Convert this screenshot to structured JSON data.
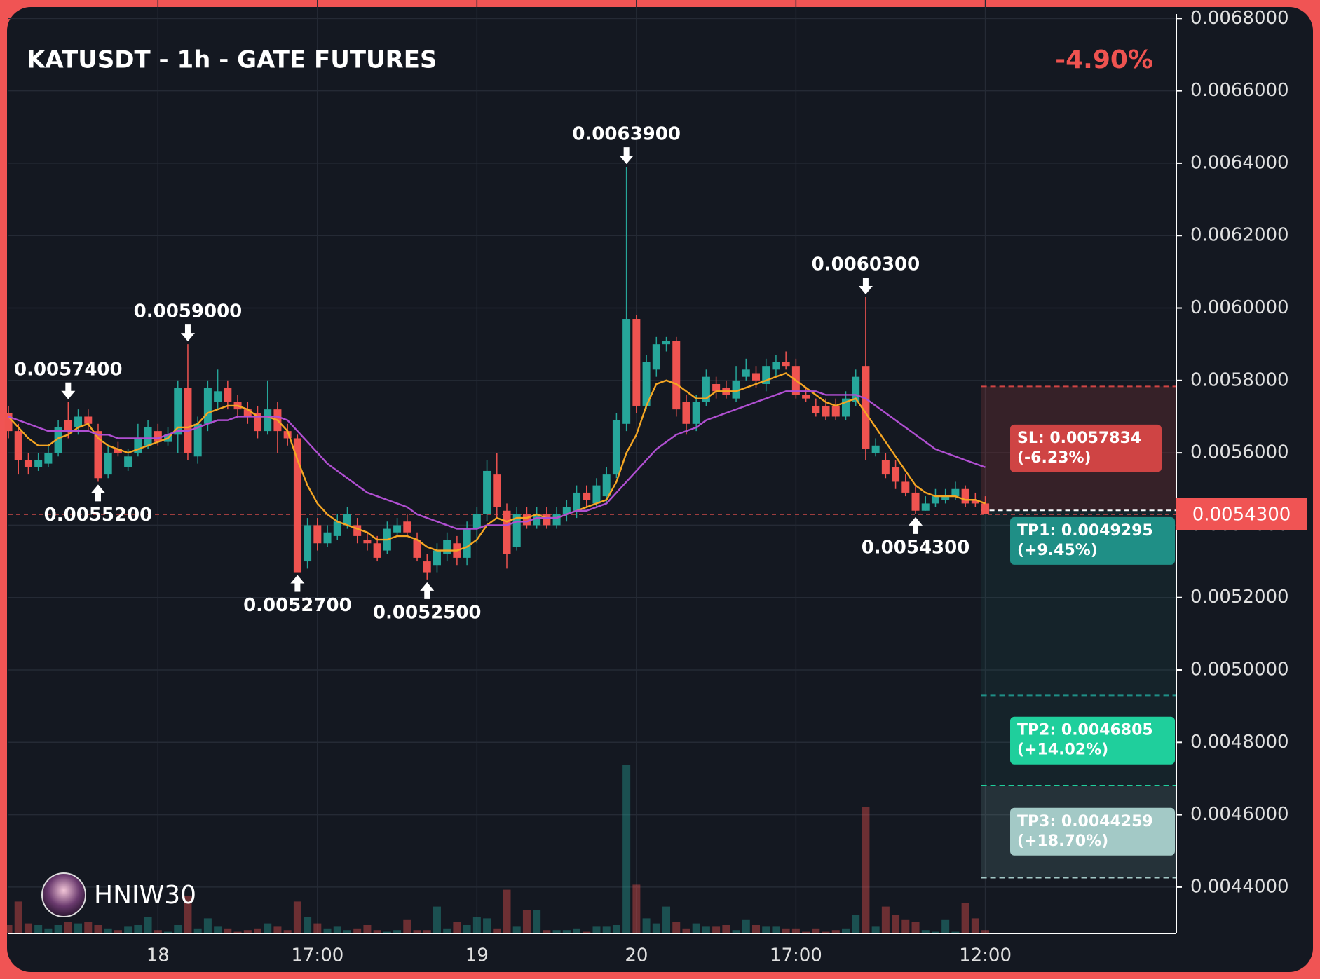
{
  "chart_data": {
    "type": "candlestick",
    "title": "KATUSDT - 1h - GATE FUTURES",
    "change": "-4.90%",
    "watermark": "HNIW30",
    "categories": [
      null,
      null,
      null,
      null,
      null,
      null,
      null,
      null,
      null,
      null,
      null,
      null,
      null,
      null,
      null,
      "18",
      null,
      null,
      null,
      null,
      null,
      null,
      null,
      null,
      null,
      null,
      null,
      null,
      null,
      null,
      null,
      "17:00",
      null,
      null,
      null,
      null,
      null,
      null,
      null,
      null,
      null,
      null,
      null,
      null,
      null,
      null,
      null,
      "19",
      null,
      null,
      null,
      null,
      null,
      null,
      null,
      null,
      null,
      null,
      null,
      null,
      null,
      null,
      null,
      "20",
      null,
      null,
      null,
      null,
      null,
      null,
      null,
      null,
      null,
      null,
      null,
      null,
      null,
      null,
      null,
      "17:00",
      null,
      null,
      null,
      null,
      null,
      null,
      null,
      null,
      null,
      null,
      null,
      null,
      null,
      null,
      null,
      null,
      null,
      null,
      "12:00"
    ],
    "open": [
      0.00571,
      0.00566,
      0.00558,
      0.00556,
      0.00557,
      0.0056,
      0.00569,
      0.00567,
      0.0057,
      0.00566,
      0.00554,
      0.00561,
      0.00556,
      0.0056,
      0.00562,
      0.00566,
      0.00563,
      0.00565,
      0.00578,
      0.00559,
      0.00568,
      0.00574,
      0.00578,
      0.00574,
      0.00572,
      0.00571,
      0.00566,
      0.00572,
      0.00566,
      0.00564,
      0.0053,
      0.0054,
      0.00535,
      0.00537,
      0.0054,
      0.0054,
      0.00536,
      0.00535,
      0.00533,
      0.00538,
      0.00541,
      0.00536,
      0.0053,
      0.00529,
      0.00532,
      0.00535,
      0.00531,
      0.00539,
      0.00543,
      0.00554,
      0.00544,
      0.00534,
      0.00543,
      0.0054,
      0.00543,
      0.0054,
      0.00543,
      0.00544,
      0.00549,
      0.00546,
      0.00548,
      0.00554,
      0.00568,
      0.00597,
      0.00573,
      0.00583,
      0.0059,
      0.00591,
      0.00574,
      0.00568,
      0.00574,
      0.00579,
      0.00578,
      0.00575,
      0.00581,
      0.00582,
      0.00579,
      0.00583,
      0.00585,
      0.00584,
      0.00576,
      0.00573,
      0.00573,
      0.00573,
      0.0057,
      0.00574,
      0.00584,
      0.0056,
      0.00558,
      0.00556,
      0.00552,
      0.00549,
      0.00544,
      0.00546,
      0.00547,
      0.00548,
      0.0055,
      0.00547,
      0.00546
    ],
    "high": [
      0.00573,
      0.00568,
      0.0056,
      0.0056,
      0.00562,
      0.00569,
      0.00574,
      0.00572,
      0.00572,
      0.00568,
      0.00562,
      0.00563,
      0.00561,
      0.00568,
      0.00569,
      0.00568,
      0.00567,
      0.0058,
      0.0059,
      0.0057,
      0.0058,
      0.00583,
      0.0058,
      0.00576,
      0.00574,
      0.00573,
      0.0058,
      0.00574,
      0.00568,
      0.00565,
      0.00542,
      0.00542,
      0.0054,
      0.00543,
      0.00545,
      0.00542,
      0.00538,
      0.00537,
      0.00541,
      0.00542,
      0.00543,
      0.00538,
      0.00532,
      0.00535,
      0.00538,
      0.00537,
      0.00541,
      0.00545,
      0.00558,
      0.0056,
      0.00546,
      0.00545,
      0.00545,
      0.00545,
      0.00545,
      0.00545,
      0.00547,
      0.00551,
      0.00551,
      0.00553,
      0.00556,
      0.00571,
      0.00639,
      0.00598,
      0.00587,
      0.00592,
      0.00592,
      0.00592,
      0.00576,
      0.00576,
      0.00583,
      0.00581,
      0.0058,
      0.00584,
      0.00586,
      0.00584,
      0.00586,
      0.00587,
      0.00588,
      0.00586,
      0.00578,
      0.00575,
      0.00575,
      0.00575,
      0.00577,
      0.00583,
      0.00603,
      0.00564,
      0.0056,
      0.00558,
      0.00554,
      0.00551,
      0.00548,
      0.0055,
      0.0055,
      0.00552,
      0.00551,
      0.00549,
      0.00548
    ],
    "low": [
      0.00564,
      0.00554,
      0.00554,
      0.00555,
      0.00556,
      0.00559,
      0.00564,
      0.00565,
      0.00566,
      0.00552,
      0.00553,
      0.00559,
      0.00555,
      0.00559,
      0.00561,
      0.00562,
      0.00562,
      0.0056,
      0.00558,
      0.00557,
      0.00566,
      0.00572,
      0.00572,
      0.0057,
      0.00568,
      0.00564,
      0.00565,
      0.0056,
      0.00562,
      0.00527,
      0.00528,
      0.00533,
      0.00534,
      0.00536,
      0.00539,
      0.00535,
      0.00533,
      0.0053,
      0.00532,
      0.00537,
      0.00537,
      0.0053,
      0.00525,
      0.00527,
      0.0053,
      0.00529,
      0.00529,
      0.00535,
      0.00541,
      0.00542,
      0.00528,
      0.00533,
      0.00539,
      0.00539,
      0.00539,
      0.00539,
      0.00541,
      0.00542,
      0.00545,
      0.00545,
      0.00546,
      0.00553,
      0.00566,
      0.00571,
      0.00572,
      0.00581,
      0.00588,
      0.0057,
      0.00565,
      0.00566,
      0.00573,
      0.00575,
      0.00575,
      0.00574,
      0.0058,
      0.00578,
      0.00577,
      0.00581,
      0.00583,
      0.00575,
      0.00574,
      0.0057,
      0.00569,
      0.00569,
      0.00569,
      0.00573,
      0.00558,
      0.00559,
      0.00553,
      0.0055,
      0.00548,
      0.00543,
      0.00544,
      0.00545,
      0.00546,
      0.00547,
      0.00545,
      0.00545,
      0.00543
    ],
    "close": [
      0.00566,
      0.00558,
      0.00556,
      0.00558,
      0.0056,
      0.00567,
      0.00566,
      0.0057,
      0.00568,
      0.00553,
      0.0056,
      0.0056,
      0.00559,
      0.00564,
      0.00567,
      0.00563,
      0.00565,
      0.00578,
      0.0056,
      0.00568,
      0.00578,
      0.00577,
      0.00574,
      0.00572,
      0.0057,
      0.00566,
      0.00572,
      0.00566,
      0.00564,
      0.00527,
      0.0054,
      0.00535,
      0.00538,
      0.00541,
      0.00543,
      0.00537,
      0.00535,
      0.00531,
      0.00539,
      0.0054,
      0.00538,
      0.00531,
      0.00527,
      0.00533,
      0.00536,
      0.00531,
      0.00539,
      0.00543,
      0.00555,
      0.00545,
      0.00532,
      0.00543,
      0.0054,
      0.00543,
      0.0054,
      0.00543,
      0.00545,
      0.00549,
      0.00547,
      0.00551,
      0.00554,
      0.00569,
      0.00597,
      0.00573,
      0.00585,
      0.0059,
      0.00591,
      0.00572,
      0.00568,
      0.00574,
      0.00581,
      0.00577,
      0.00576,
      0.0058,
      0.00583,
      0.0058,
      0.00584,
      0.00585,
      0.00584,
      0.00576,
      0.00575,
      0.00571,
      0.0057,
      0.0057,
      0.00575,
      0.00581,
      0.00561,
      0.00562,
      0.00554,
      0.00552,
      0.00549,
      0.00544,
      0.00546,
      0.00548,
      0.00548,
      0.0055,
      0.00546,
      0.00546,
      0.00543
    ],
    "volume": [
      10,
      38,
      12,
      10,
      6,
      10,
      14,
      12,
      14,
      10,
      6,
      4,
      8,
      10,
      20,
      4,
      2,
      10,
      45,
      6,
      18,
      8,
      6,
      2,
      4,
      6,
      12,
      8,
      4,
      38,
      20,
      12,
      6,
      8,
      4,
      6,
      10,
      4,
      2,
      4,
      16,
      4,
      4,
      32,
      6,
      14,
      10,
      20,
      18,
      6,
      52,
      8,
      28,
      28,
      4,
      4,
      4,
      6,
      2,
      8,
      8,
      10,
      200,
      58,
      18,
      12,
      32,
      14,
      6,
      12,
      8,
      8,
      10,
      4,
      16,
      10,
      8,
      8,
      6,
      6,
      2,
      6,
      2,
      4,
      6,
      22,
      150,
      8,
      32,
      22,
      16,
      14,
      4,
      2,
      16,
      2,
      36,
      18,
      4
    ],
    "ma_fast": [
      0.0057,
      0.00567,
      0.00564,
      0.00562,
      0.00562,
      0.00564,
      0.00565,
      0.00567,
      0.00568,
      0.00564,
      0.00562,
      0.00561,
      0.0056,
      0.00561,
      0.00562,
      0.00563,
      0.00564,
      0.00567,
      0.00567,
      0.00568,
      0.00571,
      0.00572,
      0.00573,
      0.00573,
      0.00572,
      0.0057,
      0.0057,
      0.00569,
      0.00566,
      0.00558,
      0.00551,
      0.00546,
      0.00543,
      0.00541,
      0.0054,
      0.00539,
      0.00538,
      0.00536,
      0.00536,
      0.00537,
      0.00537,
      0.00536,
      0.00534,
      0.00533,
      0.00533,
      0.00533,
      0.00534,
      0.00536,
      0.0054,
      0.00542,
      0.00541,
      0.00542,
      0.00542,
      0.00543,
      0.00542,
      0.00542,
      0.00543,
      0.00544,
      0.00545,
      0.00546,
      0.00547,
      0.00552,
      0.0056,
      0.00565,
      0.00573,
      0.00579,
      0.0058,
      0.00579,
      0.00577,
      0.00575,
      0.00575,
      0.00577,
      0.00577,
      0.00577,
      0.00578,
      0.00579,
      0.0058,
      0.00581,
      0.00582,
      0.0058,
      0.00578,
      0.00576,
      0.00574,
      0.00573,
      0.00574,
      0.00575,
      0.00571,
      0.00567,
      0.00563,
      0.00559,
      0.00555,
      0.00551,
      0.00549,
      0.00548,
      0.00548,
      0.00548,
      0.00547,
      0.00547,
      0.00546
    ],
    "ma_slow": [
      0.0057,
      0.00569,
      0.00568,
      0.00567,
      0.00566,
      0.00566,
      0.00566,
      0.00566,
      0.00566,
      0.00565,
      0.00565,
      0.00564,
      0.00564,
      0.00564,
      0.00564,
      0.00564,
      0.00565,
      0.00566,
      0.00566,
      0.00567,
      0.00568,
      0.00569,
      0.00569,
      0.0057,
      0.0057,
      0.0057,
      0.0057,
      0.0057,
      0.00569,
      0.00566,
      0.00563,
      0.0056,
      0.00557,
      0.00555,
      0.00553,
      0.00551,
      0.00549,
      0.00548,
      0.00547,
      0.00546,
      0.00545,
      0.00543,
      0.00542,
      0.00541,
      0.0054,
      0.00539,
      0.00539,
      0.00539,
      0.0054,
      0.0054,
      0.0054,
      0.00541,
      0.00541,
      0.00542,
      0.00542,
      0.00542,
      0.00543,
      0.00544,
      0.00544,
      0.00545,
      0.00546,
      0.00549,
      0.00552,
      0.00555,
      0.00558,
      0.00561,
      0.00563,
      0.00565,
      0.00566,
      0.00567,
      0.00569,
      0.0057,
      0.00571,
      0.00572,
      0.00573,
      0.00574,
      0.00575,
      0.00576,
      0.00577,
      0.00577,
      0.00577,
      0.00577,
      0.00576,
      0.00576,
      0.00576,
      0.00576,
      0.00575,
      0.00573,
      0.00571,
      0.00569,
      0.00567,
      0.00565,
      0.00563,
      0.00561,
      0.0056,
      0.00559,
      0.00558,
      0.00557,
      0.00556
    ],
    "ylim": [
      0.004272,
      0.006851
    ],
    "yticks": [
      {
        "value": 0.0044,
        "label": "0.0044000"
      },
      {
        "value": 0.0046,
        "label": "0.0046000"
      },
      {
        "value": 0.0048,
        "label": "0.0048000"
      },
      {
        "value": 0.005,
        "label": "0.0050000"
      },
      {
        "value": 0.0052,
        "label": "0.0052000"
      },
      {
        "value": 0.0054,
        "label": "0.0054000"
      },
      {
        "value": 0.0056,
        "label": "0.0056000"
      },
      {
        "value": 0.0058,
        "label": "0.0058000"
      },
      {
        "value": 0.006,
        "label": "0.0060000"
      },
      {
        "value": 0.0062,
        "label": "0.0062000"
      },
      {
        "value": 0.0064,
        "label": "0.0064000"
      },
      {
        "value": 0.0066,
        "label": "0.0066000"
      },
      {
        "value": 0.0068,
        "label": "0.0068000"
      }
    ],
    "grid": true,
    "up_color": "#26a69a",
    "down_color": "#ef5350",
    "ma_fast_color": "#f5a623",
    "ma_slow_color": "#b04fd1",
    "annotations": [
      {
        "value": 0.00574,
        "label": "0.0057400",
        "kind": "high"
      },
      {
        "value": 0.00552,
        "label": "0.0055200",
        "kind": "low"
      },
      {
        "value": 0.0059,
        "label": "0.0059000",
        "kind": "high"
      },
      {
        "value": 0.00527,
        "label": "0.0052700",
        "kind": "low"
      },
      {
        "value": 0.00525,
        "label": "0.0052500",
        "kind": "low"
      },
      {
        "value": 0.00639,
        "label": "0.0063900",
        "kind": "high"
      },
      {
        "value": 0.00603,
        "label": "0.0060300",
        "kind": "high"
      },
      {
        "value": 0.00543,
        "label": "0.0054300",
        "kind": "low"
      }
    ],
    "last": {
      "value": 0.00543,
      "label": "0.0054300"
    },
    "entry": 0.005441,
    "levels": [
      {
        "value": 0.0057834,
        "label": "SL: 0.0057834",
        "note": "(-6.23%)",
        "color": "#cf4444"
      },
      {
        "value": 0.0049295,
        "label": "TP1: 0.0049295",
        "note": "(+9.45%)",
        "color": "#1f8f86"
      },
      {
        "value": 0.0046805,
        "label": "TP2: 0.0046805",
        "note": "(+14.02%)",
        "color": "#1fcf9c"
      },
      {
        "value": 0.0044259,
        "label": "TP3: 0.0044259",
        "note": "(+18.70%)",
        "color": "#a3c9c6"
      }
    ]
  }
}
